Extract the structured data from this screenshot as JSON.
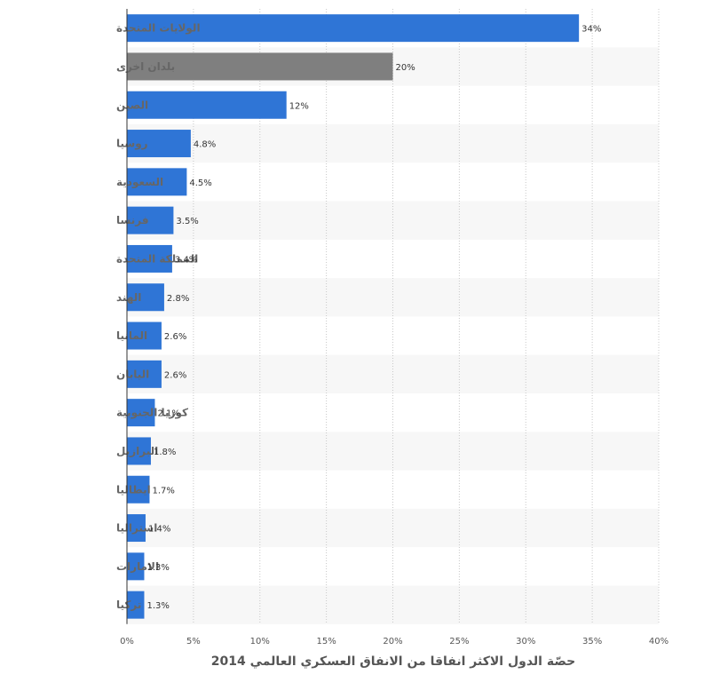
{
  "chart_data": {
    "type": "bar",
    "orientation": "horizontal",
    "categories": [
      "الولايات المتحدة",
      "بلدان اخرى",
      "الصين",
      "روسيا",
      "السعودية",
      "فرنسا",
      "المملكة المتحدة",
      "الهند",
      "المانيا",
      "اليابان",
      "كوريا الجنوبية",
      "البرازيل",
      "ايطاليا",
      "استراليا",
      "الامارات",
      "تركيا"
    ],
    "values": [
      34,
      20,
      12,
      4.8,
      4.5,
      3.5,
      3.4,
      2.8,
      2.6,
      2.6,
      2.1,
      1.8,
      1.7,
      1.4,
      1.3,
      1.3
    ],
    "value_labels": [
      "34%",
      "20%",
      "12%",
      "4.8%",
      "4.5%",
      "3.5%",
      "3.4%",
      "2.8%",
      "2.6%",
      "2.6%",
      "2.1%",
      "1.8%",
      "1.7%",
      "1.4%",
      "1.3%",
      "1.3%"
    ],
    "xlim": [
      0,
      40
    ],
    "xticks": [
      0,
      5,
      10,
      15,
      20,
      25,
      30,
      35,
      40
    ],
    "xtick_labels": [
      "0%",
      "5%",
      "10%",
      "15%",
      "20%",
      "25%",
      "30%",
      "35%",
      "40%"
    ],
    "xlabel": "حصّة الدول الاكثر انفاقا من الانفاق العسكري العالمي 2014",
    "ylabel": "",
    "grid": "vertical dotted",
    "legend": "none",
    "colors": {
      "default": "#2f75d6",
      "highlight": "#7f7f7f",
      "highlight_index": 1,
      "band": "#f7f7f7"
    }
  }
}
